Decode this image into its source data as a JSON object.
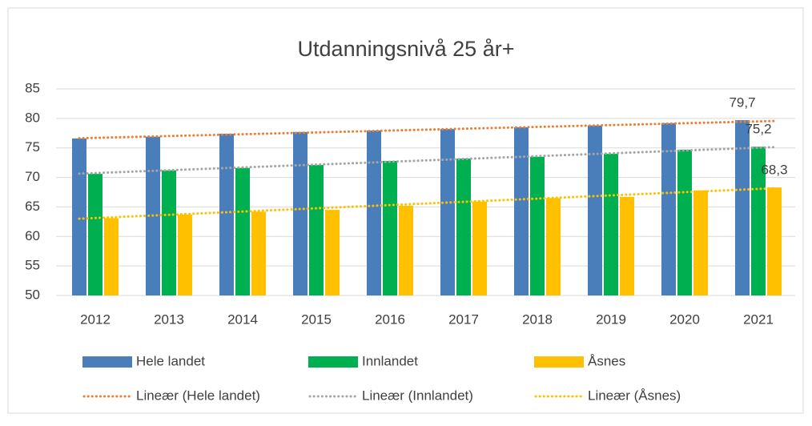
{
  "chart_data": {
    "type": "bar",
    "title": "Utdanningsnivå 25 år+",
    "categories": [
      "2012",
      "2013",
      "2014",
      "2015",
      "2016",
      "2017",
      "2018",
      "2019",
      "2020",
      "2021"
    ],
    "series": [
      {
        "name": "Hele landet",
        "color": "#4a7ebb",
        "values": [
          76.6,
          76.9,
          77.4,
          77.7,
          77.95,
          78.2,
          78.5,
          78.8,
          79.2,
          79.7
        ],
        "value_labels": [
          null,
          null,
          null,
          null,
          null,
          null,
          null,
          null,
          null,
          "79,7"
        ],
        "trendline": {
          "name": "Lineær (Hele landet)",
          "color": "#ed7d31"
        }
      },
      {
        "name": "Innlandet",
        "color": "#00b050",
        "values": [
          70.6,
          71.2,
          71.6,
          72.1,
          72.8,
          73.2,
          73.5,
          74.0,
          74.7,
          75.2
        ],
        "value_labels": [
          null,
          null,
          null,
          null,
          null,
          null,
          null,
          null,
          null,
          "75,2"
        ],
        "trendline": {
          "name": "Lineær (Innlandet)",
          "color": "#a5a5a5"
        }
      },
      {
        "name": "Åsnes",
        "color": "#ffc000",
        "values": [
          63.1,
          63.7,
          64.2,
          64.5,
          65.2,
          65.9,
          66.5,
          66.7,
          67.8,
          68.3
        ],
        "value_labels": [
          null,
          null,
          null,
          null,
          null,
          null,
          null,
          null,
          null,
          "68,3"
        ],
        "trendline": {
          "name": "Lineær (Åsnes)",
          "color": "#ffc000"
        }
      }
    ],
    "ylim": [
      50,
      85
    ],
    "yticks": [
      50,
      55,
      60,
      65,
      70,
      75,
      80,
      85
    ],
    "grid": true
  }
}
